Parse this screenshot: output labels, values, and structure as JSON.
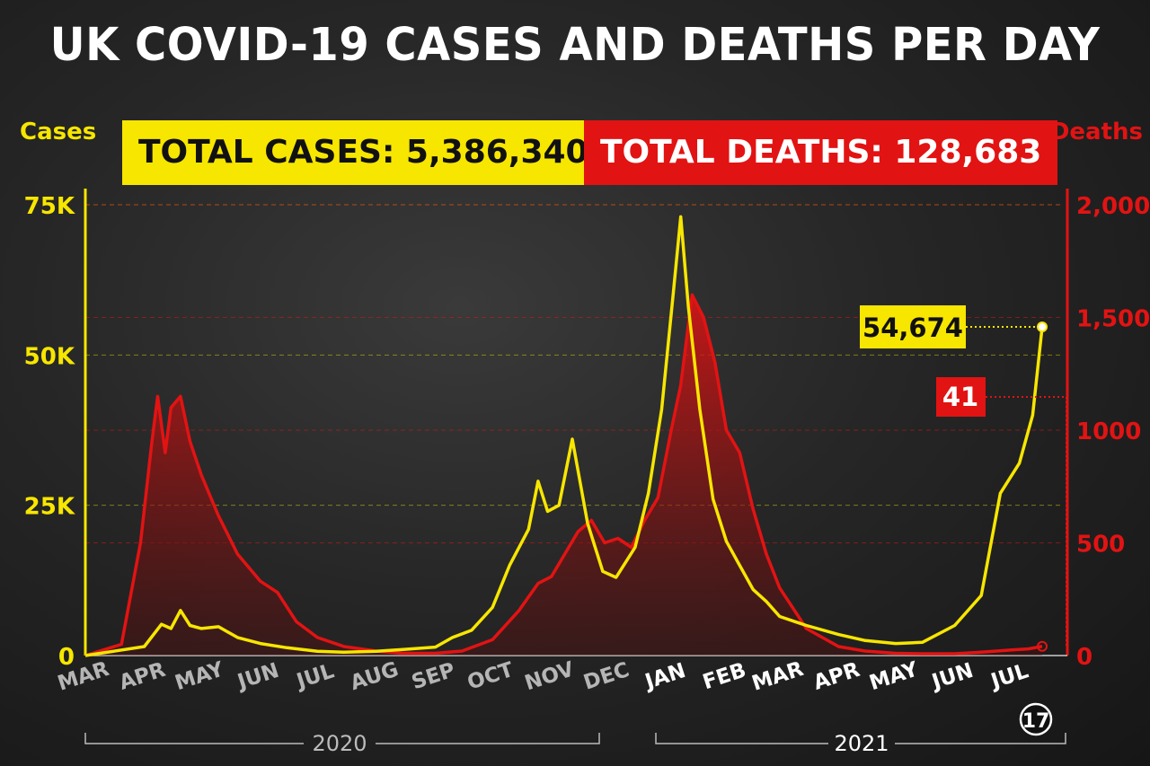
{
  "title": "UK COVID-19 CASES AND DEATHS PER DAY",
  "left_axis_title": "Cases",
  "right_axis_title": "Deaths",
  "total_cases_label": "TOTAL CASES: 5,386,340",
  "total_deaths_label": "TOTAL DEATHS: 128,683",
  "colors": {
    "cases": "#f7e600",
    "deaths": "#e21313",
    "text": "#ffffff",
    "muted": "#b5b5b5"
  },
  "chart_data": {
    "type": "line",
    "x_axis": {
      "ticks": [
        "MAR",
        "APR",
        "MAY",
        "JUN",
        "JUL",
        "AUG",
        "SEP",
        "OCT",
        "NOV",
        "DEC",
        "JAN",
        "FEB",
        "MAR",
        "APR",
        "MAY",
        "JUN",
        "JUL"
      ],
      "year_labels": [
        "2020",
        "2021"
      ],
      "end_marker_label": "17"
    },
    "y_left": {
      "label": "Cases",
      "range": [
        0,
        75000
      ],
      "ticks": [
        0,
        25000,
        50000,
        75000
      ],
      "tick_labels": [
        "0",
        "25K",
        "50K",
        "75K"
      ]
    },
    "y_right": {
      "label": "Deaths",
      "range": [
        0,
        2000
      ],
      "ticks": [
        0,
        500,
        1000,
        1500,
        2000
      ],
      "tick_labels": [
        "0",
        "500",
        "1000",
        "1,500",
        "2,000"
      ]
    },
    "series": [
      {
        "name": "Cases",
        "axis": "left",
        "points": [
          [
            "2020-03-01",
            0
          ],
          [
            "2020-04-01",
            1500
          ],
          [
            "2020-04-10",
            5200
          ],
          [
            "2020-04-15",
            4500
          ],
          [
            "2020-04-20",
            7500
          ],
          [
            "2020-04-25",
            5000
          ],
          [
            "2020-05-01",
            4500
          ],
          [
            "2020-05-10",
            4800
          ],
          [
            "2020-05-20",
            3000
          ],
          [
            "2020-06-01",
            2000
          ],
          [
            "2020-06-15",
            1300
          ],
          [
            "2020-07-01",
            700
          ],
          [
            "2020-07-15",
            550
          ],
          [
            "2020-08-01",
            700
          ],
          [
            "2020-08-15",
            1000
          ],
          [
            "2020-09-01",
            1400
          ],
          [
            "2020-09-10",
            3000
          ],
          [
            "2020-09-20",
            4200
          ],
          [
            "2020-10-01",
            8000
          ],
          [
            "2020-10-10",
            15000
          ],
          [
            "2020-10-20",
            21000
          ],
          [
            "2020-10-25",
            29000
          ],
          [
            "2020-10-30",
            24000
          ],
          [
            "2020-11-05",
            25000
          ],
          [
            "2020-11-12",
            36000
          ],
          [
            "2020-11-20",
            22000
          ],
          [
            "2020-11-28",
            14000
          ],
          [
            "2020-12-05",
            13000
          ],
          [
            "2020-12-15",
            18000
          ],
          [
            "2020-12-22",
            27000
          ],
          [
            "2020-12-29",
            41000
          ],
          [
            "2021-01-04",
            60000
          ],
          [
            "2021-01-08",
            73000
          ],
          [
            "2021-01-12",
            58000
          ],
          [
            "2021-01-18",
            41000
          ],
          [
            "2021-01-25",
            26000
          ],
          [
            "2021-02-01",
            19000
          ],
          [
            "2021-02-08",
            15000
          ],
          [
            "2021-02-15",
            11000
          ],
          [
            "2021-02-22",
            9000
          ],
          [
            "2021-03-01",
            6500
          ],
          [
            "2021-03-15",
            5000
          ],
          [
            "2021-04-01",
            3500
          ],
          [
            "2021-04-15",
            2500
          ],
          [
            "2021-05-01",
            2000
          ],
          [
            "2021-05-15",
            2200
          ],
          [
            "2021-06-01",
            5000
          ],
          [
            "2021-06-15",
            10000
          ],
          [
            "2021-06-25",
            27000
          ],
          [
            "2021-07-05",
            32000
          ],
          [
            "2021-07-12",
            40000
          ],
          [
            "2021-07-17",
            54674
          ]
        ]
      },
      {
        "name": "Deaths",
        "axis": "right",
        "points": [
          [
            "2020-03-01",
            0
          ],
          [
            "2020-03-20",
            50
          ],
          [
            "2020-03-30",
            500
          ],
          [
            "2020-04-05",
            950
          ],
          [
            "2020-04-08",
            1150
          ],
          [
            "2020-04-12",
            900
          ],
          [
            "2020-04-15",
            1100
          ],
          [
            "2020-04-20",
            1150
          ],
          [
            "2020-04-25",
            950
          ],
          [
            "2020-05-01",
            800
          ],
          [
            "2020-05-10",
            620
          ],
          [
            "2020-05-20",
            450
          ],
          [
            "2020-06-01",
            330
          ],
          [
            "2020-06-10",
            280
          ],
          [
            "2020-06-20",
            150
          ],
          [
            "2020-07-01",
            80
          ],
          [
            "2020-07-15",
            40
          ],
          [
            "2020-08-01",
            20
          ],
          [
            "2020-08-15",
            10
          ],
          [
            "2020-09-01",
            10
          ],
          [
            "2020-09-15",
            20
          ],
          [
            "2020-10-01",
            70
          ],
          [
            "2020-10-15",
            200
          ],
          [
            "2020-10-25",
            320
          ],
          [
            "2020-11-01",
            350
          ],
          [
            "2020-11-08",
            450
          ],
          [
            "2020-11-15",
            550
          ],
          [
            "2020-11-22",
            600
          ],
          [
            "2020-11-29",
            500
          ],
          [
            "2020-12-06",
            520
          ],
          [
            "2020-12-13",
            480
          ],
          [
            "2020-12-20",
            600
          ],
          [
            "2020-12-27",
            700
          ],
          [
            "2021-01-03",
            1000
          ],
          [
            "2021-01-08",
            1200
          ],
          [
            "2021-01-14",
            1600
          ],
          [
            "2021-01-20",
            1500
          ],
          [
            "2021-01-26",
            1300
          ],
          [
            "2021-02-01",
            1000
          ],
          [
            "2021-02-08",
            900
          ],
          [
            "2021-02-15",
            650
          ],
          [
            "2021-02-22",
            450
          ],
          [
            "2021-03-01",
            300
          ],
          [
            "2021-03-15",
            120
          ],
          [
            "2021-04-01",
            40
          ],
          [
            "2021-04-15",
            20
          ],
          [
            "2021-05-01",
            10
          ],
          [
            "2021-05-15",
            8
          ],
          [
            "2021-06-01",
            8
          ],
          [
            "2021-06-15",
            15
          ],
          [
            "2021-07-01",
            25
          ],
          [
            "2021-07-10",
            30
          ],
          [
            "2021-07-17",
            41
          ]
        ]
      }
    ],
    "annotations": [
      {
        "series": "Cases",
        "label": "54,674",
        "value": 54674,
        "date": "2021-07-17"
      },
      {
        "series": "Deaths",
        "label": "41",
        "value": 41,
        "date": "2021-07-17"
      }
    ]
  }
}
